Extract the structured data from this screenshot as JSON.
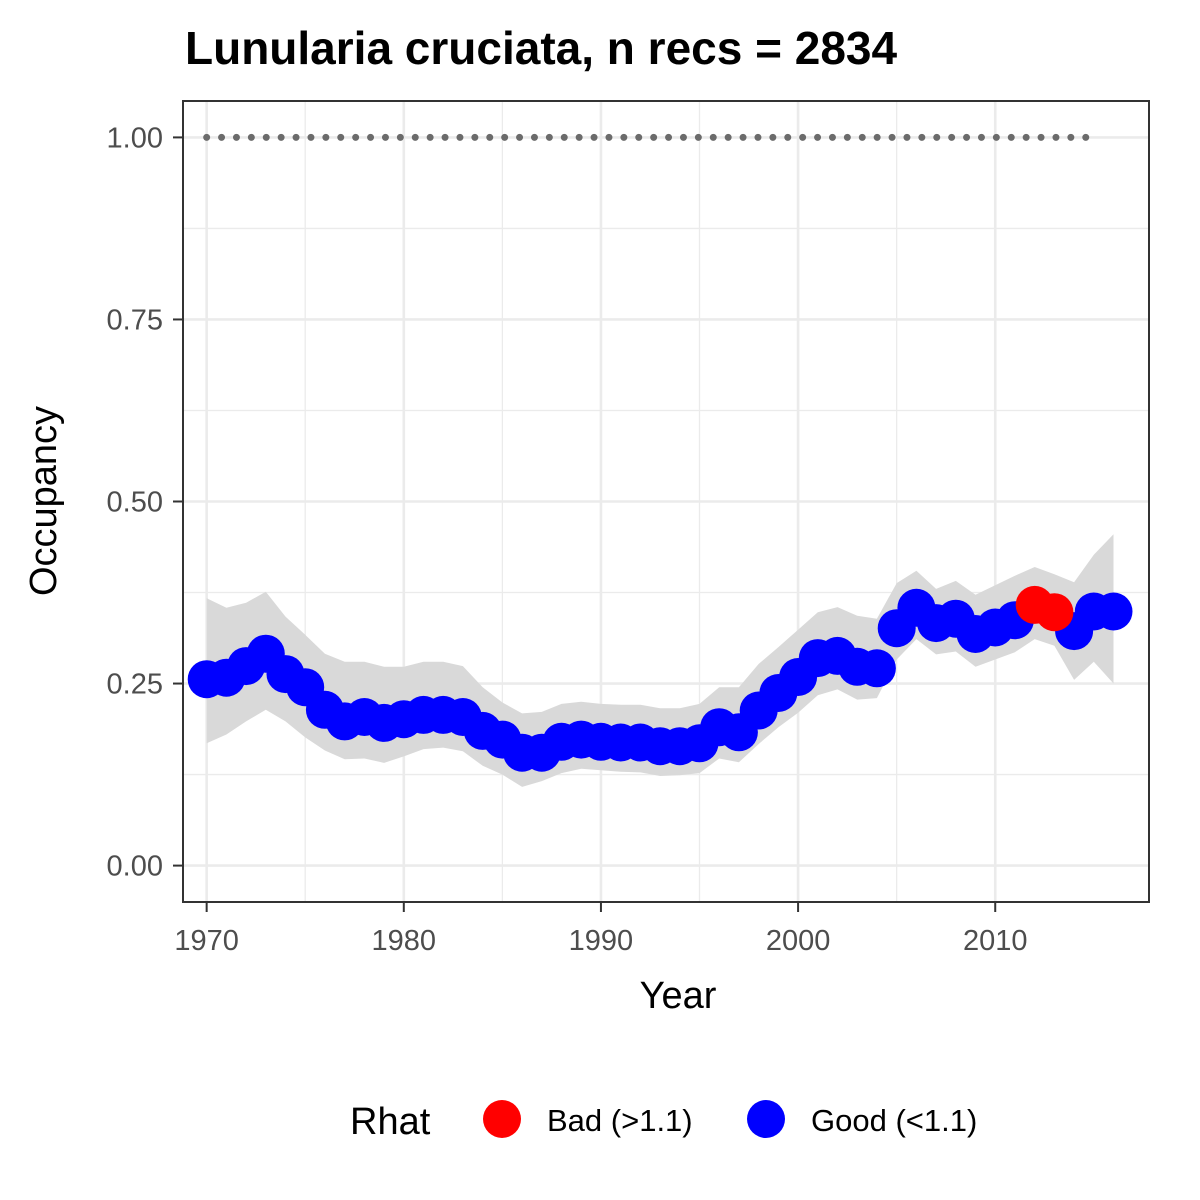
{
  "chart_data": {
    "type": "line",
    "title": "Lunularia cruciata, n recs = 2834",
    "xlabel": "Year",
    "ylabel": "Occupancy",
    "xlim": [
      1968.8,
      2017.8
    ],
    "ylim": [
      -0.05,
      1.05
    ],
    "x_ticks": [
      1970,
      1980,
      1990,
      2000,
      2010
    ],
    "x_tick_labels": [
      "1970",
      "1980",
      "1990",
      "2000",
      "2010"
    ],
    "y_ticks": [
      0,
      0.25,
      0.5,
      0.75,
      1.0
    ],
    "y_tick_labels": [
      "0.00",
      "0.25",
      "0.50",
      "0.75",
      "1.00"
    ],
    "grid": true,
    "years": [
      1970,
      1971,
      1972,
      1973,
      1974,
      1975,
      1976,
      1977,
      1978,
      1979,
      1980,
      1981,
      1982,
      1983,
      1984,
      1985,
      1986,
      1987,
      1988,
      1989,
      1990,
      1991,
      1992,
      1993,
      1994,
      1995,
      1996,
      1997,
      1998,
      1999,
      2000,
      2001,
      2002,
      2003,
      2004,
      2005,
      2006,
      2007,
      2008,
      2009,
      2010,
      2011,
      2012,
      2013,
      2014,
      2015,
      2016
    ],
    "mean": [
      0.256,
      0.258,
      0.274,
      0.291,
      0.263,
      0.245,
      0.214,
      0.198,
      0.204,
      0.196,
      0.201,
      0.207,
      0.207,
      0.204,
      0.185,
      0.173,
      0.155,
      0.155,
      0.17,
      0.173,
      0.17,
      0.169,
      0.169,
      0.164,
      0.164,
      0.168,
      0.19,
      0.183,
      0.213,
      0.237,
      0.259,
      0.285,
      0.288,
      0.273,
      0.271,
      0.326,
      0.354,
      0.333,
      0.339,
      0.318,
      0.327,
      0.337,
      0.358,
      0.348,
      0.322,
      0.349,
      0.349
    ],
    "lower": [
      0.168,
      0.18,
      0.198,
      0.214,
      0.198,
      0.176,
      0.158,
      0.146,
      0.147,
      0.141,
      0.15,
      0.16,
      0.162,
      0.157,
      0.137,
      0.125,
      0.108,
      0.116,
      0.127,
      0.133,
      0.131,
      0.129,
      0.128,
      0.123,
      0.124,
      0.127,
      0.147,
      0.142,
      0.167,
      0.19,
      0.21,
      0.234,
      0.242,
      0.228,
      0.23,
      0.283,
      0.311,
      0.29,
      0.294,
      0.273,
      0.283,
      0.293,
      0.311,
      0.302,
      0.255,
      0.28,
      0.25
    ],
    "upper": [
      0.367,
      0.354,
      0.361,
      0.376,
      0.342,
      0.317,
      0.291,
      0.28,
      0.28,
      0.273,
      0.273,
      0.28,
      0.28,
      0.274,
      0.245,
      0.224,
      0.209,
      0.211,
      0.222,
      0.225,
      0.222,
      0.221,
      0.221,
      0.216,
      0.216,
      0.222,
      0.245,
      0.245,
      0.277,
      0.3,
      0.324,
      0.348,
      0.355,
      0.343,
      0.339,
      0.388,
      0.405,
      0.38,
      0.391,
      0.372,
      0.385,
      0.398,
      0.41,
      0.4,
      0.389,
      0.427,
      0.455
    ],
    "rhat_status": [
      "good",
      "good",
      "good",
      "good",
      "good",
      "good",
      "good",
      "good",
      "good",
      "good",
      "good",
      "good",
      "good",
      "good",
      "good",
      "good",
      "good",
      "good",
      "good",
      "good",
      "good",
      "good",
      "good",
      "good",
      "good",
      "good",
      "good",
      "good",
      "good",
      "good",
      "good",
      "good",
      "good",
      "good",
      "good",
      "good",
      "good",
      "good",
      "good",
      "good",
      "good",
      "good",
      "bad",
      "bad",
      "good",
      "good",
      "good"
    ],
    "reference_line": {
      "value": 1.0,
      "x_range": [
        1970,
        2015
      ],
      "style": "dotted"
    },
    "legend": {
      "title": "Rhat",
      "position": "bottom",
      "entries": [
        {
          "key": "bad",
          "label": "Bad (>1.1)"
        },
        {
          "key": "good",
          "label": "Good (<1.1)"
        }
      ]
    },
    "colors": {
      "good": "#0000ff",
      "bad": "#ff0000",
      "ribbon": "#d9d9d9",
      "reference": "#6b6b6b",
      "grid": "#ebebeb",
      "panel_border": "#333333"
    }
  }
}
